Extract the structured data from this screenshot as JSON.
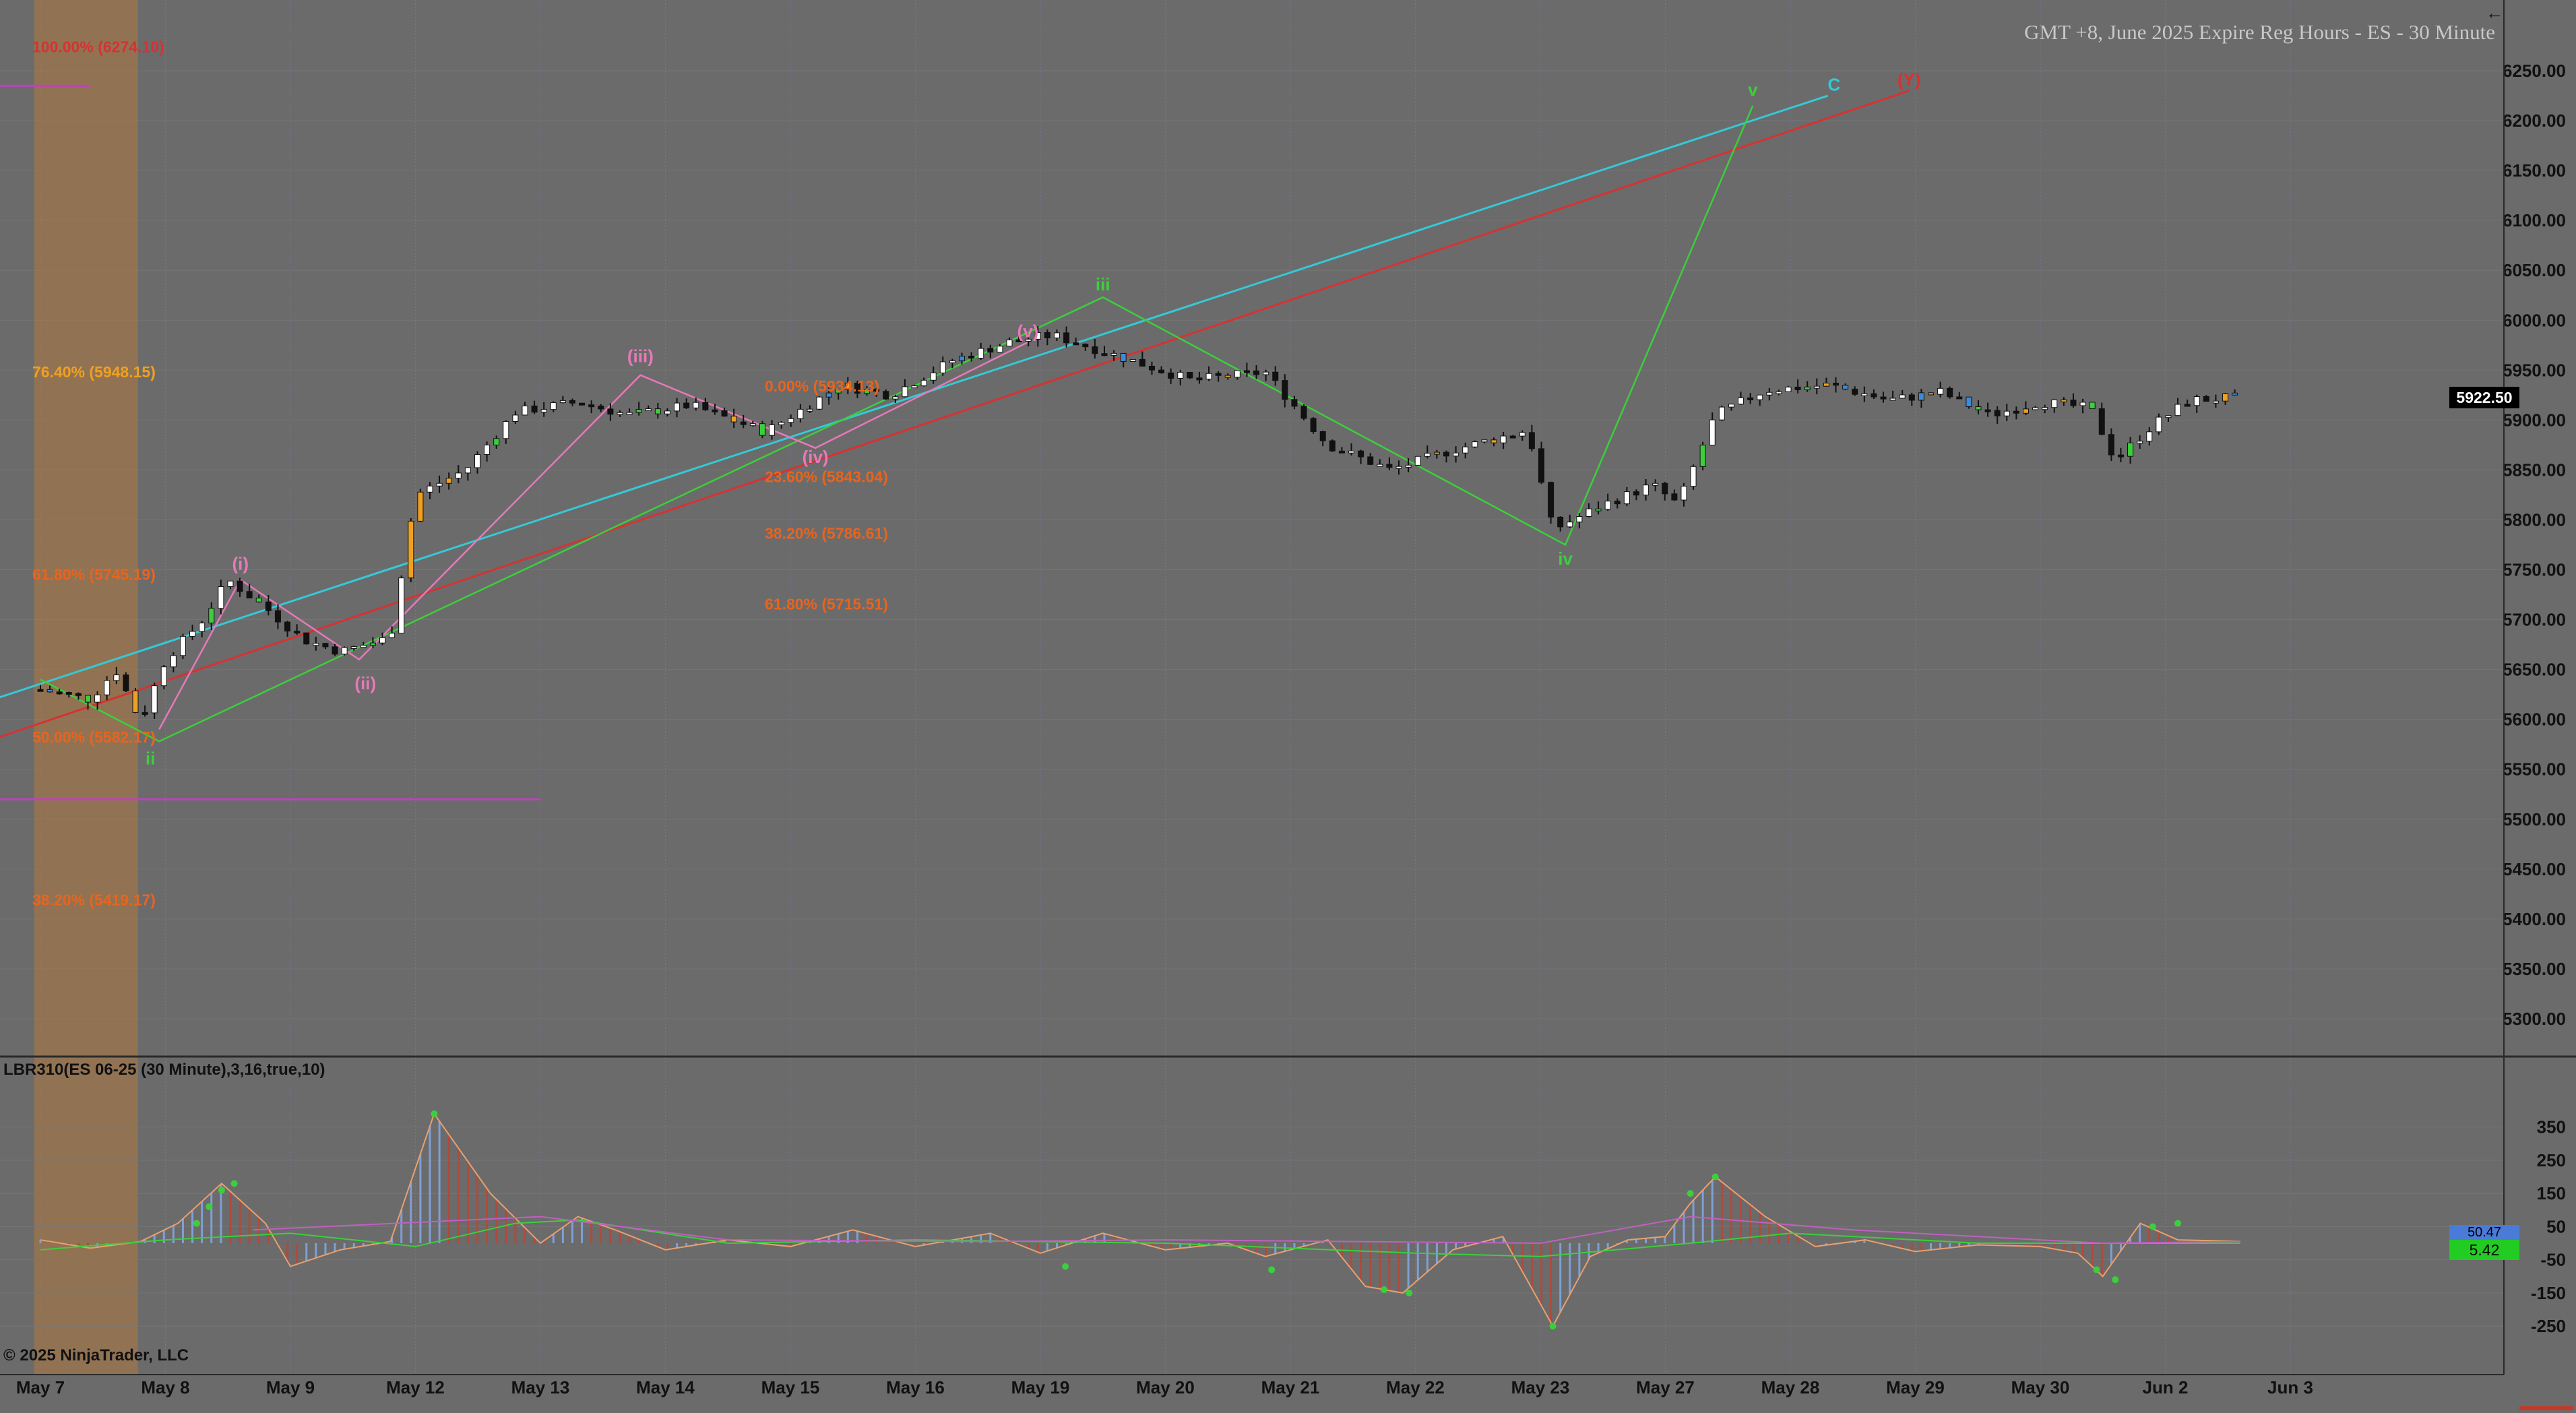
{
  "window": {
    "title": "GMT +8, June 2025 Expire Reg Hours - ES - 30 Minute",
    "back_icon": "back-arrow-icon"
  },
  "price_panel": {
    "current_price": "5922.50"
  },
  "indicator_panel": {
    "label": "LBR310(ES 06-25 (30 Minute),3,16,true,10)",
    "current_value": "5.42",
    "secondary_value": "50.47"
  },
  "footer": {
    "copyright": "© 2025 NinjaTrader, LLC"
  },
  "colors": {
    "background": "#6b6b6b",
    "cyan_line": "#35c9d6",
    "red_line": "#d63232",
    "green_wave": "#3ccf3c",
    "pink_wave": "#e67ab8",
    "fib_orange": "#e8641e",
    "fib_gold": "#f0a020",
    "magenta_level": "#c040c0",
    "highlight_box": "#b07a40"
  },
  "chart_data": [
    {
      "type": "candlestick",
      "title": "GMT +8, June 2025 Expire Reg Hours - ES - 30 Minute",
      "x_categories": [
        "May 7",
        "May 8",
        "May 9",
        "May 12",
        "May 13",
        "May 14",
        "May 15",
        "May 16",
        "May 19",
        "May 20",
        "May 21",
        "May 22",
        "May 23",
        "May 27",
        "May 28",
        "May 29",
        "May 30",
        "Jun 2",
        "Jun 3"
      ],
      "y_ticks": [
        "5300.00",
        "5350.00",
        "5400.00",
        "5450.00",
        "5500.00",
        "5550.00",
        "5600.00",
        "5650.00",
        "5700.00",
        "5750.00",
        "5800.00",
        "5850.00",
        "5900.00",
        "5950.00",
        "6000.00",
        "6050.00",
        "6100.00",
        "6150.00",
        "6200.00",
        "6250.00"
      ],
      "ylim": [
        5280,
        6300
      ],
      "last_price": 5922.5,
      "price_path": [
        {
          "x": 0.0,
          "y": 5630
        },
        {
          "x": 0.4,
          "y": 5620
        },
        {
          "x": 0.6,
          "y": 5650
        },
        {
          "x": 0.8,
          "y": 5598
        },
        {
          "x": 1.0,
          "y": 5660
        },
        {
          "x": 1.3,
          "y": 5700
        },
        {
          "x": 1.5,
          "y": 5740
        },
        {
          "x": 1.8,
          "y": 5712
        },
        {
          "x": 2.1,
          "y": 5680
        },
        {
          "x": 2.4,
          "y": 5668
        },
        {
          "x": 2.8,
          "y": 5682
        },
        {
          "x": 3.0,
          "y": 5825
        },
        {
          "x": 3.4,
          "y": 5850
        },
        {
          "x": 3.8,
          "y": 5908
        },
        {
          "x": 4.3,
          "y": 5918
        },
        {
          "x": 4.7,
          "y": 5905
        },
        {
          "x": 5.2,
          "y": 5915
        },
        {
          "x": 5.8,
          "y": 5888
        },
        {
          "x": 6.4,
          "y": 5935
        },
        {
          "x": 6.8,
          "y": 5925
        },
        {
          "x": 7.3,
          "y": 5960
        },
        {
          "x": 7.8,
          "y": 5980
        },
        {
          "x": 8.1,
          "y": 5985
        },
        {
          "x": 8.6,
          "y": 5965
        },
        {
          "x": 9.2,
          "y": 5940
        },
        {
          "x": 9.8,
          "y": 5948
        },
        {
          "x": 10.3,
          "y": 5875
        },
        {
          "x": 10.8,
          "y": 5850
        },
        {
          "x": 11.3,
          "y": 5870
        },
        {
          "x": 11.9,
          "y": 5890
        },
        {
          "x": 12.1,
          "y": 5790
        },
        {
          "x": 12.5,
          "y": 5815
        },
        {
          "x": 12.9,
          "y": 5835
        },
        {
          "x": 13.1,
          "y": 5815
        },
        {
          "x": 13.4,
          "y": 5905
        },
        {
          "x": 13.8,
          "y": 5930
        },
        {
          "x": 14.3,
          "y": 5935
        },
        {
          "x": 14.8,
          "y": 5920
        },
        {
          "x": 15.2,
          "y": 5928
        },
        {
          "x": 15.6,
          "y": 5905
        },
        {
          "x": 16.0,
          "y": 5918
        },
        {
          "x": 16.4,
          "y": 5912
        },
        {
          "x": 16.6,
          "y": 5860
        },
        {
          "x": 16.9,
          "y": 5895
        },
        {
          "x": 17.2,
          "y": 5920
        },
        {
          "x": 17.6,
          "y": 5922.5
        }
      ],
      "fibonacci_levels": [
        {
          "label": "100.00% (6274.10)",
          "value": 6274.1,
          "color": "#d63232"
        },
        {
          "label": "76.40% (5948.15)",
          "value": 5948.15,
          "color": "#f0a020"
        },
        {
          "label": "61.80% (5745.19)",
          "value": 5745.19,
          "color": "#e8641e"
        },
        {
          "label": "50.00% (5582.17)",
          "value": 5582.17,
          "color": "#e8641e"
        },
        {
          "label": "38.20% (5419.17)",
          "value": 5419.17,
          "color": "#e8641e"
        },
        {
          "label": "0.00% (5934.13)",
          "value": 5934.13,
          "color": "#e8641e"
        },
        {
          "label": "23.60% (5843.04)",
          "value": 5843.04,
          "color": "#e8641e"
        },
        {
          "label": "38.20% (5786.61)",
          "value": 5786.61,
          "color": "#e8641e"
        },
        {
          "label": "61.80% (5715.51)",
          "value": 5715.51,
          "color": "#e8641e"
        }
      ],
      "wave_labels": [
        {
          "text": "ii",
          "x": 0.88,
          "y": 5555,
          "color": "#3ccf3c"
        },
        {
          "text": "iii",
          "x": 8.5,
          "y": 6030,
          "color": "#3ccf3c"
        },
        {
          "text": "iv",
          "x": 12.2,
          "y": 5755,
          "color": "#3ccf3c"
        },
        {
          "text": "v",
          "x": 13.7,
          "y": 6225,
          "color": "#3ccf3c"
        },
        {
          "text": "C",
          "x": 14.35,
          "y": 6230,
          "color": "#35c9d6"
        },
        {
          "text": "(Y)",
          "x": 14.95,
          "y": 6235,
          "color": "#d63232"
        },
        {
          "text": "(i)",
          "x": 1.6,
          "y": 5750,
          "color": "#e67ab8"
        },
        {
          "text": "(ii)",
          "x": 2.6,
          "y": 5630,
          "color": "#e67ab8"
        },
        {
          "text": "(iii)",
          "x": 4.8,
          "y": 5958,
          "color": "#e67ab8"
        },
        {
          "text": "(iv)",
          "x": 6.2,
          "y": 5857,
          "color": "#e67ab8"
        },
        {
          "text": "(v)",
          "x": 7.9,
          "y": 5983,
          "color": "#e67ab8"
        }
      ],
      "green_wave_path": [
        {
          "x": 0.0,
          "y": 5640
        },
        {
          "x": 0.95,
          "y": 5578
        },
        {
          "x": 8.5,
          "y": 6023
        },
        {
          "x": 12.2,
          "y": 5775
        },
        {
          "x": 13.7,
          "y": 6215
        }
      ],
      "pink_wave_path": [
        {
          "x": 0.95,
          "y": 5590
        },
        {
          "x": 1.6,
          "y": 5740
        },
        {
          "x": 2.55,
          "y": 5660
        },
        {
          "x": 4.8,
          "y": 5945
        },
        {
          "x": 6.2,
          "y": 5872
        },
        {
          "x": 7.9,
          "y": 5978
        }
      ],
      "trend_lines": [
        {
          "name": "cyan",
          "from": {
            "x": -0.5,
            "y": 5615
          },
          "to": {
            "x": 14.3,
            "y": 6225
          }
        },
        {
          "name": "red",
          "from": {
            "x": -0.5,
            "y": 5575
          },
          "to": {
            "x": 14.95,
            "y": 6230
          }
        }
      ],
      "level_lines": [
        {
          "value": 5520,
          "x_from": -0.5,
          "x_to": 4.0,
          "color": "#c040c0"
        },
        {
          "value": 6235,
          "x_from": -0.5,
          "x_to": 0.4,
          "color": "#c040c0"
        }
      ],
      "highlight_zone": {
        "x_from": -0.05,
        "x_to": 0.78
      }
    },
    {
      "type": "bar",
      "title": "LBR310(ES 06-25 (30 Minute),3,16,true,10)",
      "y_ticks": [
        "-250",
        "-150",
        "-50",
        "50",
        "150",
        "250",
        "350"
      ],
      "ylim": [
        -270,
        400
      ],
      "last_value": 5.42,
      "oscillator": [
        {
          "x": 0.0,
          "y": 10
        },
        {
          "x": 0.4,
          "y": -15
        },
        {
          "x": 0.8,
          "y": 5
        },
        {
          "x": 1.1,
          "y": 60
        },
        {
          "x": 1.45,
          "y": 180
        },
        {
          "x": 1.8,
          "y": 60
        },
        {
          "x": 2.0,
          "y": -70
        },
        {
          "x": 2.4,
          "y": -20
        },
        {
          "x": 2.8,
          "y": 5
        },
        {
          "x": 3.15,
          "y": 390
        },
        {
          "x": 3.6,
          "y": 150
        },
        {
          "x": 4.0,
          "y": 0
        },
        {
          "x": 4.3,
          "y": 80
        },
        {
          "x": 4.6,
          "y": 40
        },
        {
          "x": 5.0,
          "y": -20
        },
        {
          "x": 5.5,
          "y": 10
        },
        {
          "x": 6.0,
          "y": -10
        },
        {
          "x": 6.5,
          "y": 40
        },
        {
          "x": 7.0,
          "y": -10
        },
        {
          "x": 7.6,
          "y": 30
        },
        {
          "x": 8.0,
          "y": -30
        },
        {
          "x": 8.5,
          "y": 30
        },
        {
          "x": 9.0,
          "y": -20
        },
        {
          "x": 9.5,
          "y": 0
        },
        {
          "x": 9.8,
          "y": -40
        },
        {
          "x": 10.3,
          "y": 10
        },
        {
          "x": 10.6,
          "y": -130
        },
        {
          "x": 10.9,
          "y": -150
        },
        {
          "x": 11.3,
          "y": -20
        },
        {
          "x": 11.7,
          "y": 20
        },
        {
          "x": 12.1,
          "y": -250
        },
        {
          "x": 12.4,
          "y": -40
        },
        {
          "x": 12.7,
          "y": 10
        },
        {
          "x": 13.0,
          "y": 20
        },
        {
          "x": 13.2,
          "y": 120
        },
        {
          "x": 13.4,
          "y": 200
        },
        {
          "x": 13.8,
          "y": 80
        },
        {
          "x": 14.2,
          "y": -10
        },
        {
          "x": 14.6,
          "y": 10
        },
        {
          "x": 15.0,
          "y": -25
        },
        {
          "x": 15.5,
          "y": -5
        },
        {
          "x": 16.0,
          "y": -10
        },
        {
          "x": 16.3,
          "y": -30
        },
        {
          "x": 16.5,
          "y": -100
        },
        {
          "x": 16.8,
          "y": 60
        },
        {
          "x": 17.1,
          "y": 10
        },
        {
          "x": 17.6,
          "y": 5.42
        }
      ],
      "signal_line": [
        {
          "x": 0.0,
          "y": -20
        },
        {
          "x": 1.0,
          "y": 10
        },
        {
          "x": 2.0,
          "y": 30
        },
        {
          "x": 3.0,
          "y": -10
        },
        {
          "x": 3.8,
          "y": 60
        },
        {
          "x": 4.3,
          "y": 70
        },
        {
          "x": 5.5,
          "y": 0
        },
        {
          "x": 7.0,
          "y": 10
        },
        {
          "x": 9.0,
          "y": 0
        },
        {
          "x": 11.0,
          "y": -30
        },
        {
          "x": 12.0,
          "y": -40
        },
        {
          "x": 13.2,
          "y": 0
        },
        {
          "x": 14.0,
          "y": 30
        },
        {
          "x": 15.5,
          "y": 0
        },
        {
          "x": 17.6,
          "y": 0
        }
      ],
      "pink_line": [
        {
          "x": 1.7,
          "y": 40
        },
        {
          "x": 4.0,
          "y": 80
        },
        {
          "x": 5.5,
          "y": 10
        },
        {
          "x": 7.5,
          "y": 5
        },
        {
          "x": 9.0,
          "y": 10
        },
        {
          "x": 12.0,
          "y": 0
        },
        {
          "x": 13.2,
          "y": 80
        },
        {
          "x": 14.5,
          "y": 40
        },
        {
          "x": 16.5,
          "y": 0
        },
        {
          "x": 17.6,
          "y": 5
        }
      ],
      "extreme_dots": [
        {
          "x": 1.25,
          "y": 60
        },
        {
          "x": 1.35,
          "y": 110
        },
        {
          "x": 1.45,
          "y": 160
        },
        {
          "x": 1.55,
          "y": 180
        },
        {
          "x": 3.15,
          "y": 390
        },
        {
          "x": 8.2,
          "y": -70
        },
        {
          "x": 9.85,
          "y": -80
        },
        {
          "x": 10.75,
          "y": -140
        },
        {
          "x": 10.95,
          "y": -150
        },
        {
          "x": 12.1,
          "y": -250
        },
        {
          "x": 13.2,
          "y": 150
        },
        {
          "x": 13.4,
          "y": 200
        },
        {
          "x": 16.45,
          "y": -80
        },
        {
          "x": 16.6,
          "y": -110
        },
        {
          "x": 16.9,
          "y": 50
        },
        {
          "x": 17.1,
          "y": 60
        }
      ]
    }
  ]
}
